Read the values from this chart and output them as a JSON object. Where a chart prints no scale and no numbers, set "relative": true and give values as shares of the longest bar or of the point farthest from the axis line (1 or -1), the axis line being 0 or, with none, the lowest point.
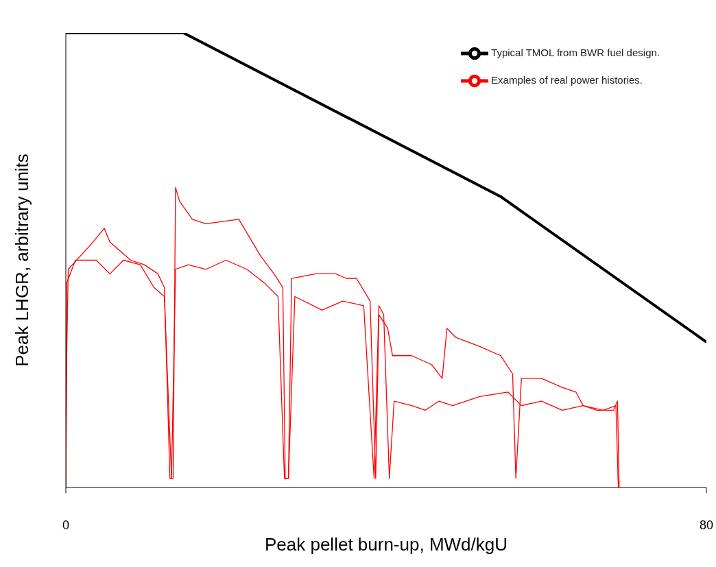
{
  "chart_data": {
    "type": "line",
    "relative": true,
    "xlabel": "Peak pellet burn-up, MWd/kgU",
    "ylabel": "Peak LHGR, arbitrary units",
    "xlim": [
      0,
      80
    ],
    "xticks": [
      0,
      80
    ],
    "grid": false,
    "legend": "top right",
    "marker": "none",
    "line_style": "solid",
    "series": [
      {
        "name": "Typical TMOL from BWR fuel design.",
        "color": "#000000",
        "x": [
          0,
          14.7,
          54.3,
          80
        ],
        "values": [
          1,
          1,
          0.64,
          0.32
        ]
      },
      {
        "name": "Examples of real power histories.",
        "color": "#ff0000",
        "x": [
          0,
          0.1,
          0.3,
          2.9,
          4.8,
          5.5,
          8.1,
          9.8,
          11.5,
          12.3,
          13.0,
          13.4,
          13.7,
          14.2,
          15.8,
          17.5,
          21.6,
          24.3,
          26.0,
          27.1,
          27.4,
          27.8,
          28.2,
          31.2,
          33.7,
          35.0,
          36.3,
          38.0,
          38.7,
          39.1,
          40.2,
          40.8,
          43.2,
          45.7,
          47.0,
          47.6,
          48.7,
          51.7,
          54.3,
          55.8,
          56.2,
          56.9,
          59.4,
          62.0,
          63.7,
          64.6,
          66.3,
          68.4,
          68.9,
          69.1
        ],
        "values": [
          0,
          0.28,
          0.48,
          0.53,
          0.57,
          0.54,
          0.5,
          0.49,
          0.47,
          0.44,
          0.02,
          0.02,
          0.66,
          0.63,
          0.59,
          0.58,
          0.59,
          0.51,
          0.47,
          0.44,
          0.02,
          0.02,
          0.46,
          0.47,
          0.47,
          0.46,
          0.46,
          0.41,
          0.02,
          0.38,
          0.35,
          0.29,
          0.29,
          0.27,
          0.24,
          0.35,
          0.33,
          0.31,
          0.29,
          0.25,
          0.02,
          0.24,
          0.24,
          0.22,
          0.21,
          0.18,
          0.17,
          0.17,
          0.19,
          0
        ]
      },
      {
        "color": "#ff0000",
        "x": [
          0,
          0.1,
          1.2,
          3.8,
          5.5,
          7.2,
          9.3,
          11.0,
          12.3,
          13.2,
          13.7,
          15.3,
          17.5,
          20.0,
          22.6,
          24.8,
          26.5,
          27.3,
          27.8,
          28.6,
          32.0,
          34.6,
          37.2,
          38.5,
          39.1,
          39.7,
          40.4,
          41.0,
          43.2,
          44.9,
          46.6,
          48.3,
          51.7,
          55.2,
          56.9,
          59.4,
          62.0,
          64.6,
          67.1,
          68.7,
          69.0
        ],
        "values": [
          0,
          0.45,
          0.5,
          0.5,
          0.47,
          0.5,
          0.49,
          0.44,
          0.42,
          0.02,
          0.48,
          0.49,
          0.48,
          0.5,
          0.48,
          0.45,
          0.42,
          0.02,
          0.02,
          0.42,
          0.39,
          0.41,
          0.4,
          0.02,
          0.4,
          0.38,
          0.02,
          0.19,
          0.18,
          0.17,
          0.19,
          0.18,
          0.2,
          0.21,
          0.18,
          0.19,
          0.17,
          0.18,
          0.17,
          0.18,
          0
        ]
      }
    ]
  }
}
